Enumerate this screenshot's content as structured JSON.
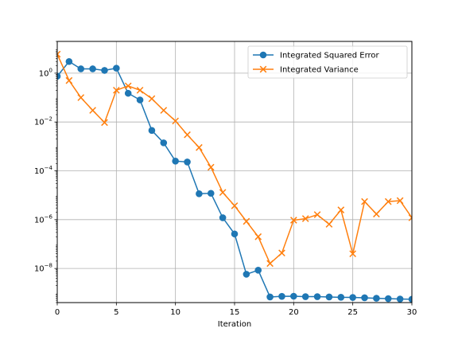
{
  "chart_data": {
    "type": "line",
    "title": "",
    "xlabel": "Iteration",
    "ylabel": "",
    "xlim": [
      0,
      30
    ],
    "ylim": [
      4e-10,
      20
    ],
    "yscale": "log",
    "grid": true,
    "legend_position": "top-right",
    "x_ticks": [
      0,
      5,
      10,
      15,
      20,
      25,
      30
    ],
    "y_ticks": [
      {
        "value": 1,
        "base": "10",
        "exp": "0"
      },
      {
        "value": 0.01,
        "base": "10",
        "exp": "−2"
      },
      {
        "value": 0.0001,
        "base": "10",
        "exp": "−4"
      },
      {
        "value": 1e-06,
        "base": "10",
        "exp": "−6"
      },
      {
        "value": 1e-08,
        "base": "10",
        "exp": "−8"
      }
    ],
    "series": [
      {
        "name": "Integrated Squared Error",
        "color": "#1f77b4",
        "marker": "circle",
        "x": [
          0,
          1,
          2,
          3,
          4,
          5,
          6,
          7,
          8,
          9,
          10,
          11,
          12,
          13,
          14,
          15,
          16,
          17,
          18,
          19,
          20,
          21,
          22,
          23,
          24,
          25,
          26,
          27,
          28,
          29,
          30
        ],
        "y": [
          0.75,
          3.0,
          1.5,
          1.5,
          1.3,
          1.6,
          0.15,
          0.08,
          0.0045,
          0.0014,
          0.00025,
          0.00023,
          1.15e-05,
          1.2e-05,
          1.2e-06,
          2.6e-07,
          5.8e-09,
          8.5e-09,
          6.8e-10,
          7.2e-10,
          7.3e-10,
          7e-10,
          7e-10,
          6.8e-10,
          6.6e-10,
          6.5e-10,
          6.3e-10,
          6e-10,
          5.8e-10,
          5.6e-10,
          5.5e-10
        ]
      },
      {
        "name": "Integrated Variance",
        "color": "#ff7f0e",
        "marker": "x",
        "x": [
          0,
          1,
          2,
          3,
          4,
          5,
          6,
          7,
          8,
          9,
          10,
          11,
          12,
          13,
          14,
          15,
          16,
          17,
          18,
          19,
          20,
          21,
          22,
          23,
          24,
          25,
          26,
          27,
          28,
          29,
          30
        ],
        "y": [
          6.0,
          0.5,
          0.1,
          0.03,
          0.0095,
          0.2,
          0.3,
          0.2,
          0.09,
          0.03,
          0.011,
          0.003,
          0.0009,
          0.00014,
          1.3e-05,
          3.7e-06,
          8.5e-07,
          2e-07,
          1.6e-08,
          4.3e-08,
          9.5e-07,
          1.1e-06,
          1.6e-06,
          6.5e-07,
          2.5e-06,
          4e-08,
          5.5e-06,
          1.7e-06,
          5.5e-06,
          6e-06,
          1.2e-06
        ]
      }
    ]
  }
}
